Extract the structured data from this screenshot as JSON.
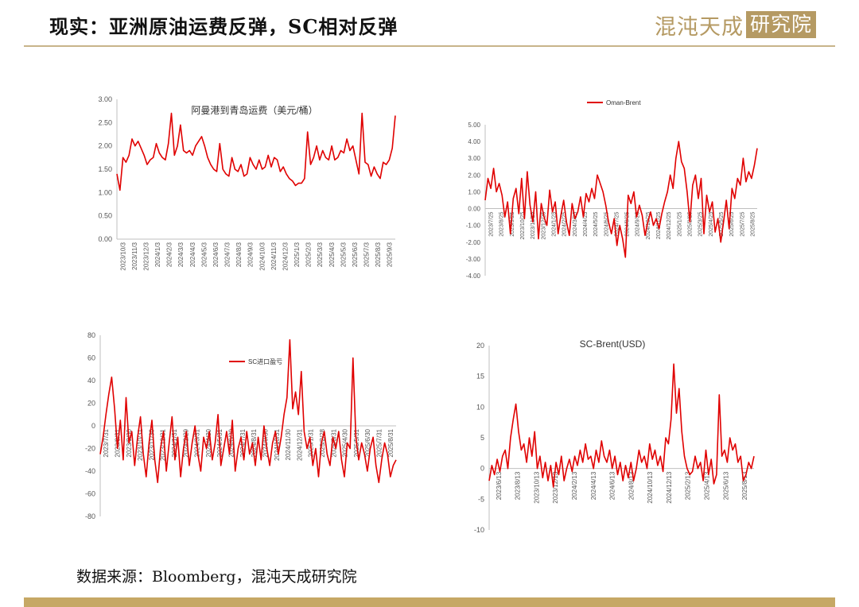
{
  "page": {
    "title": "现实：亚洲原油运费反弹，SC相对反弹",
    "logo_text": "混沌天成",
    "logo_box_text": "研究院",
    "source": "数据来源：Bloomberg，混沌天成研究院"
  },
  "colors": {
    "series": "#e00000",
    "accent": "#c6a865",
    "axis": "#bfbfbf",
    "tick": "#555555"
  },
  "chart_data": [
    {
      "type": "line",
      "title": "阿曼港到青岛运费（美元/桶）",
      "ylim": [
        0,
        3
      ],
      "y_ticks": [
        "0.00",
        "0.50",
        "1.00",
        "1.50",
        "2.00",
        "2.50",
        "3.00"
      ],
      "x_ticks": [
        "2023/10/3",
        "2023/11/3",
        "2023/12/3",
        "2024/1/3",
        "2024/2/3",
        "2024/3/3",
        "2024/4/3",
        "2024/5/3",
        "2024/6/3",
        "2024/7/3",
        "2024/8/3",
        "2024/9/3",
        "2024/10/3",
        "2024/11/3",
        "2024/12/3",
        "2025/1/3",
        "2025/2/3",
        "2025/3/3",
        "2025/4/3",
        "2025/5/3",
        "2025/6/3",
        "2025/7/3",
        "2025/8/3",
        "2025/9/3"
      ],
      "series": [
        {
          "name": "",
          "values": [
            1.4,
            1.05,
            1.75,
            1.65,
            1.8,
            2.15,
            2.0,
            2.1,
            1.95,
            1.8,
            1.6,
            1.7,
            1.75,
            2.05,
            1.85,
            1.75,
            1.7,
            2.05,
            2.7,
            1.8,
            2.0,
            2.45,
            1.9,
            1.85,
            1.9,
            1.8,
            2.0,
            2.1,
            2.2,
            2.0,
            1.75,
            1.6,
            1.5,
            1.45,
            2.05,
            1.5,
            1.4,
            1.35,
            1.75,
            1.5,
            1.45,
            1.6,
            1.35,
            1.4,
            1.75,
            1.6,
            1.5,
            1.7,
            1.5,
            1.55,
            1.8,
            1.55,
            1.75,
            1.7,
            1.45,
            1.55,
            1.4,
            1.3,
            1.25,
            1.15,
            1.2,
            1.2,
            1.3,
            2.3,
            1.6,
            1.75,
            2.0,
            1.7,
            1.9,
            1.75,
            1.7,
            2.0,
            1.7,
            1.75,
            1.9,
            1.85,
            2.15,
            1.9,
            2.0,
            1.7,
            1.4,
            2.7,
            1.65,
            1.6,
            1.35,
            1.55,
            1.4,
            1.3,
            1.65,
            1.6,
            1.7,
            1.95,
            2.65
          ]
        }
      ]
    },
    {
      "type": "line",
      "title": "",
      "ylim": [
        -4,
        5
      ],
      "y_ticks": [
        "5.00",
        "4.00",
        "3.00",
        "2.00",
        "1.00",
        "0.00",
        "-1.00",
        "-2.00",
        "-3.00",
        "-4.00"
      ],
      "x_ticks": [
        "2023/7/25",
        "2023/8/25",
        "2023/9/25",
        "2023/10/25",
        "2023/11/25",
        "2023/12/25",
        "2024/1/25",
        "2024/2/25",
        "2024/3/25",
        "2024/4/25",
        "2024/5/25",
        "2024/6/25",
        "2024/7/25",
        "2024/8/25",
        "2024/9/25",
        "2024/10/25",
        "2024/11/25",
        "2024/12/25",
        "2025/1/25",
        "2025/2/25",
        "2025/3/25",
        "2025/4/25",
        "2025/5/25",
        "2025/6/25",
        "2025/7/25",
        "2025/8/25"
      ],
      "legend": "Oman-Brent",
      "legend_position": "top",
      "series": [
        {
          "name": "Oman-Brent",
          "values": [
            0.5,
            1.8,
            1.2,
            2.4,
            1.0,
            1.5,
            0.8,
            -0.5,
            0.4,
            -1.5,
            0.6,
            1.2,
            -0.3,
            1.8,
            -0.6,
            2.2,
            0.2,
            -0.8,
            1.0,
            -1.8,
            0.3,
            -0.5,
            -1.0,
            1.1,
            -0.2,
            0.4,
            -1.5,
            -0.4,
            0.5,
            -0.8,
            -1.6,
            0.3,
            -0.6,
            -0.2,
            0.7,
            -0.5,
            0.9,
            0.4,
            1.2,
            0.6,
            2.0,
            1.5,
            1.0,
            0.2,
            -0.8,
            -1.5,
            -0.6,
            -2.2,
            -1.0,
            -1.8,
            -2.9,
            0.8,
            0.3,
            1.0,
            -0.5,
            0.2,
            -0.4,
            -1.6,
            -0.8,
            -0.2,
            -1.0,
            -0.6,
            -1.2,
            -0.3,
            0.4,
            1.0,
            2.0,
            1.2,
            3.0,
            4.0,
            2.8,
            2.4,
            1.0,
            -0.8,
            1.4,
            2.0,
            0.6,
            1.8,
            -1.5,
            0.8,
            -0.2,
            0.4,
            -1.4,
            -0.6,
            -2.0,
            -0.8,
            0.5,
            -1.2,
            1.2,
            0.6,
            1.8,
            1.4,
            3.0,
            1.6,
            2.2,
            1.8,
            2.6,
            3.6
          ]
        }
      ]
    },
    {
      "type": "line",
      "title": "",
      "ylim": [
        -80,
        80
      ],
      "y_ticks": [
        "80",
        "60",
        "40",
        "20",
        "0",
        "-20",
        "-40",
        "-60",
        "-80"
      ],
      "x_ticks": [
        "2023/7/31",
        "2023/8/31",
        "2023/9/30",
        "2023/10/31",
        "2023/11/30",
        "2023/12/31",
        "2024/1/31",
        "2024/2/29",
        "2024/3/31",
        "2024/4/30",
        "2024/5/31",
        "2024/6/30",
        "2024/7/31",
        "2024/8/31",
        "2024/9/30",
        "2024/10/31",
        "2024/11/30",
        "2024/12/31",
        "2025/1/31",
        "2025/2/28",
        "2025/3/31",
        "2025/4/30",
        "2025/5/31",
        "2025/6/30",
        "2025/7/31",
        "2025/8/31"
      ],
      "legend": "SC进口盈亏",
      "legend_position": "top",
      "series": [
        {
          "name": "SC进口盈亏",
          "values": [
            -25,
            -10,
            10,
            28,
            43,
            15,
            -20,
            5,
            -30,
            25,
            -15,
            -5,
            -35,
            -10,
            8,
            -25,
            -45,
            -15,
            5,
            -30,
            -50,
            -20,
            -5,
            -40,
            -15,
            8,
            -30,
            -10,
            -45,
            -20,
            -5,
            -35,
            -15,
            0,
            -25,
            -40,
            -10,
            -20,
            -5,
            -30,
            -15,
            10,
            -35,
            -20,
            -5,
            -25,
            5,
            -40,
            -20,
            -10,
            -30,
            -5,
            -25,
            -15,
            -35,
            -10,
            -30,
            0,
            -20,
            -35,
            -15,
            -5,
            -25,
            -10,
            10,
            25,
            76,
            15,
            30,
            10,
            48,
            -5,
            -20,
            -10,
            -35,
            -20,
            -45,
            -15,
            -5,
            -25,
            -35,
            -10,
            -20,
            -5,
            -30,
            -45,
            -15,
            -20,
            60,
            -10,
            -30,
            -15,
            -25,
            -40,
            -20,
            -10,
            -35,
            -50,
            -30,
            -15,
            -25,
            -45,
            -35,
            -30
          ]
        }
      ]
    },
    {
      "type": "line",
      "title": "SC-Brent(USD)",
      "ylim": [
        -10,
        20
      ],
      "y_ticks": [
        "20",
        "15",
        "10",
        "5",
        "0",
        "-5",
        "-10"
      ],
      "x_ticks": [
        "2023/6/13",
        "2023/8/13",
        "2023/10/13",
        "2023/12/13",
        "2024/2/13",
        "2024/4/13",
        "2024/6/13",
        "2024/8/13",
        "2024/10/13",
        "2024/12/13",
        "2025/2/13",
        "2025/4/13",
        "2025/6/13",
        "2025/8/13"
      ],
      "series": [
        {
          "name": "SC-Brent(USD)",
          "values": [
            -2,
            0.5,
            -1,
            1.5,
            -0.5,
            2,
            3,
            0,
            5,
            8,
            10.5,
            6,
            3,
            4,
            1,
            5,
            2,
            6,
            0,
            2,
            -1.5,
            1,
            -2,
            0.5,
            -3,
            1,
            -1,
            2,
            -2,
            0,
            1.5,
            -0.5,
            2,
            0.5,
            3,
            1,
            4,
            1.5,
            2,
            0,
            3,
            1,
            4.5,
            2,
            1,
            3,
            0,
            2,
            -1,
            1,
            -2,
            0.5,
            -1.5,
            1,
            -2,
            0,
            3,
            1,
            2,
            0,
            4,
            1.5,
            3,
            0.5,
            2,
            -0.5,
            5,
            4,
            8,
            17,
            9,
            13,
            6,
            2,
            0,
            -1,
            -0.5,
            2,
            0,
            1,
            -2,
            3,
            -1,
            1.5,
            -2.5,
            -1,
            12,
            2,
            3,
            1,
            5,
            3,
            4,
            1,
            2,
            -2,
            -1,
            1,
            0,
            2
          ]
        }
      ]
    }
  ]
}
